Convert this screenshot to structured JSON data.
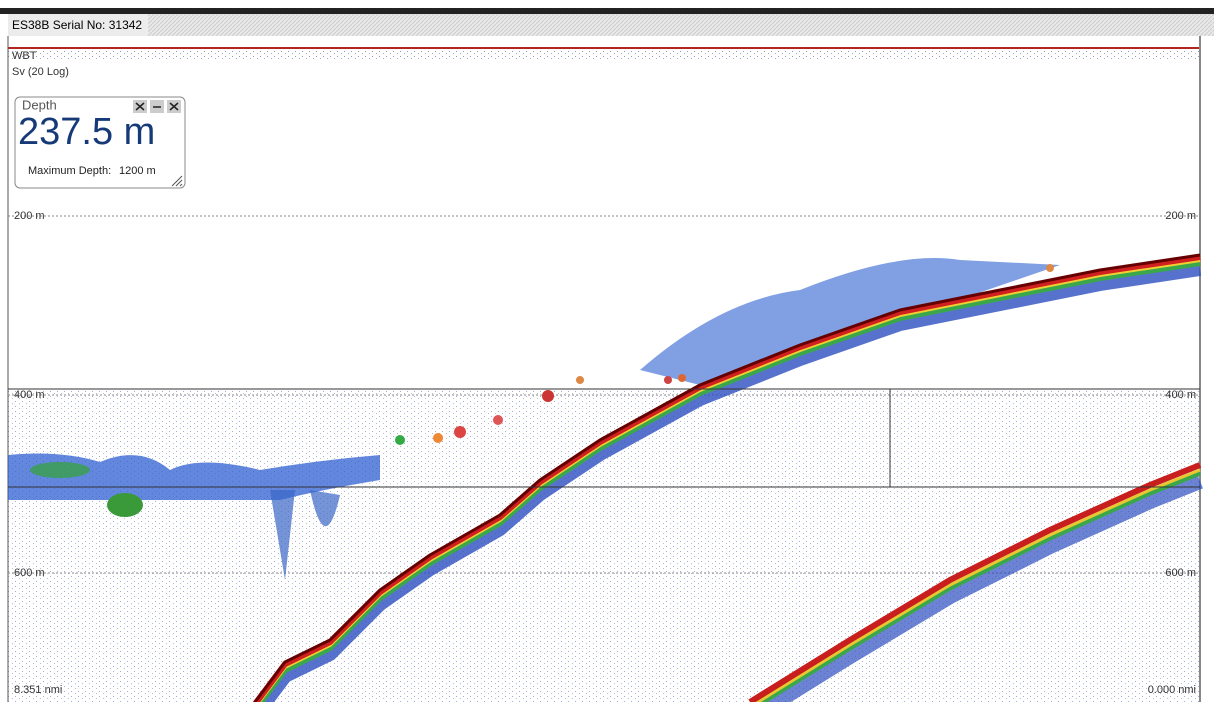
{
  "window": {
    "title": "ES38B Serial No: 31342"
  },
  "echogram": {
    "labels": [
      "WBT",
      "Sv (20 Log)"
    ],
    "depth_lines": [
      {
        "left": "200 m",
        "right": "200 m"
      },
      {
        "left": "400 m",
        "right": "400 m"
      },
      {
        "left": "600 m",
        "right": "600 m"
      }
    ],
    "distance_start": "8.351 nmi",
    "distance_end": "0.000 nmi"
  },
  "depth_panel": {
    "title": "Depth",
    "value": "237.5 m",
    "max_label": "Maximum Depth:",
    "max_value": "1200 m"
  }
}
